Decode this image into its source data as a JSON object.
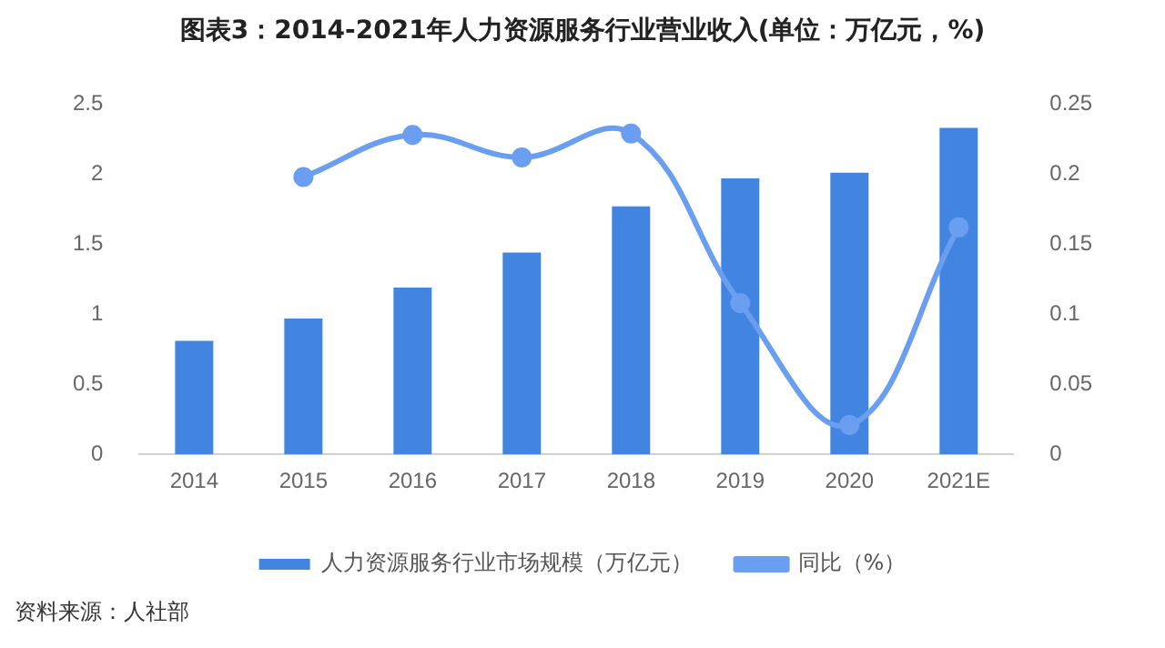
{
  "chart_data": {
    "type": "bar",
    "title": "图表3：2014-2021年人力资源服务行业营业收入(单位：万亿元，%)",
    "categories": [
      "2014",
      "2015",
      "2016",
      "2017",
      "2018",
      "2019",
      "2020",
      "2021E"
    ],
    "series": [
      {
        "name": "人力资源服务行业市场规模（万亿元）",
        "color": "#4285e0",
        "values": [
          0.81,
          0.97,
          1.19,
          1.44,
          1.77,
          1.97,
          2.01,
          2.33
        ]
      },
      {
        "name": "同比（%）",
        "type": "line",
        "axis": "y2",
        "color": "#6a9ef0",
        "marker": "circle",
        "values": [
          null,
          0.198,
          0.228,
          0.212,
          0.229,
          0.108,
          0.021,
          0.162
        ]
      }
    ],
    "ylim": [
      0,
      2.5
    ],
    "yticks": [
      0,
      0.5,
      1,
      1.5,
      2,
      2.5
    ],
    "y2lim": [
      0,
      0.25
    ],
    "y2ticks": [
      0,
      0.05,
      0.1,
      0.15,
      0.2,
      0.25
    ],
    "grid": false,
    "legend": "bottom",
    "annotations": [
      "资料来源：人社部"
    ]
  }
}
